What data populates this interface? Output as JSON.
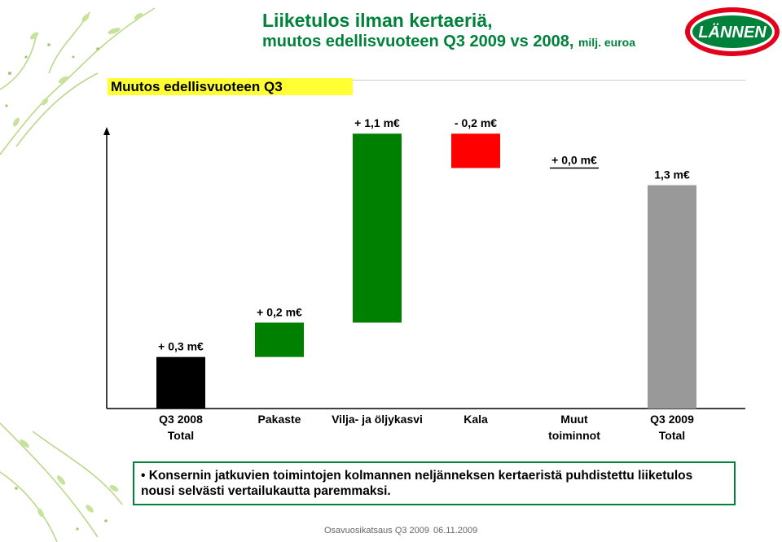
{
  "header": {
    "title_line1": "Liiketulos ilman kertaeriä,",
    "title_line2": "muutos edellisvuoteen Q3 2009 vs 2008,",
    "unit": "milj. euroa",
    "logo_text": "LÄNNEN"
  },
  "subtitle": "Muutos edellisvuoteen Q3",
  "chart_data": {
    "type": "waterfall",
    "unit": "m€",
    "categories": [
      "Q3 2008\nTotal",
      "Pakaste",
      "Vilja- ja öljykasvi",
      "Kala",
      "Muut\ntoiminnot",
      "Q3 2009\nTotal"
    ],
    "values": [
      0.3,
      0.2,
      1.1,
      -0.2,
      0.0,
      1.3
    ],
    "kinds": [
      "total",
      "delta",
      "delta",
      "delta",
      "delta",
      "total"
    ],
    "data_labels": [
      "+ 0,3 m€",
      "+ 0,2 m€",
      "+ 1,1 m€",
      "- 0,2 m€",
      "+ 0,0 m€",
      "1,3 m€"
    ],
    "colors": [
      "#000000",
      "#008000",
      "#008000",
      "#ff0000",
      "#000000",
      "#999999"
    ],
    "ylim": [
      0,
      1.62
    ]
  },
  "note": "Konsernin jatkuvien toimintojen kolmannen neljänneksen kertaeristä puhdistettu liiketulos nousi selvästi vertailukautta paremmaksi.",
  "footer": {
    "report": "Osavuosikatsaus Q3 2009",
    "date": "06.11.2009"
  },
  "colors": {
    "brand_green": "#00823b",
    "brand_red": "#e2001a",
    "highlight_yellow": "#ffff33"
  }
}
